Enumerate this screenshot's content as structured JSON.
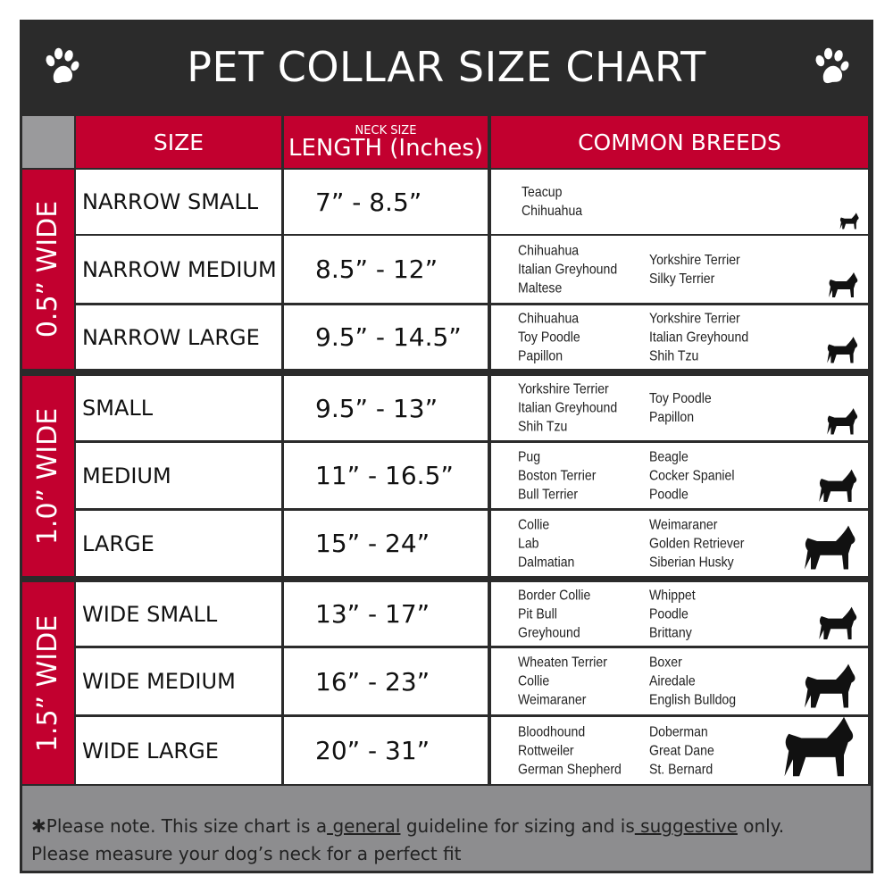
{
  "title": "PET COLLAR SIZE CHART",
  "header": {
    "size": "SIZE",
    "neck_size": "NECK SIZE",
    "length": "LENGTH (Inches)",
    "breeds": "COMMON BREEDS"
  },
  "colors": {
    "red": "#c2002f",
    "dark": "#2b2b2b",
    "gray": "#8d8d8f"
  },
  "groups": [
    {
      "label": "0.5” WIDE",
      "rows": [
        {
          "size": "NARROW SMALL",
          "length": "7” - 8.5”",
          "breeds_left": [
            "Teacup",
            "Chihuahua"
          ],
          "breeds_right": [],
          "icon": "yorkie-silhouette-icon"
        },
        {
          "size": "NARROW MEDIUM",
          "length": "8.5” - 12”",
          "breeds_left": [
            "Chihuahua",
            "Italian Greyhound",
            "Maltese"
          ],
          "breeds_right": [
            "Yorkshire Terrier",
            "Silky Terrier"
          ],
          "icon": "chihuahua-silhouette-icon"
        },
        {
          "size": "NARROW LARGE",
          "length": "9.5” - 14.5”",
          "breeds_left": [
            "Chihuahua",
            "Toy Poodle",
            "Papillon"
          ],
          "breeds_right": [
            "Yorkshire Terrier",
            "Italian Greyhound",
            "Shih Tzu"
          ],
          "icon": "pomeranian-silhouette-icon"
        }
      ]
    },
    {
      "label": "1.0” WIDE",
      "rows": [
        {
          "size": "SMALL",
          "length": "9.5” - 13”",
          "breeds_left": [
            "Yorkshire Terrier",
            "Italian Greyhound",
            "Shih Tzu"
          ],
          "breeds_right": [
            "Toy Poodle",
            "Papillon"
          ],
          "icon": "pomeranian-silhouette-icon"
        },
        {
          "size": "MEDIUM",
          "length": "11” - 16.5”",
          "breeds_left": [
            "Pug",
            "Boston Terrier",
            "Bull Terrier"
          ],
          "breeds_right": [
            "Beagle",
            "Cocker Spaniel",
            "Poodle"
          ],
          "icon": "dachshund-silhouette-icon"
        },
        {
          "size": "LARGE",
          "length": "15” - 24”",
          "breeds_left": [
            "Collie",
            "Lab",
            "Dalmatian"
          ],
          "breeds_right": [
            "Weimaraner",
            "Golden Retriever",
            "Siberian Husky"
          ],
          "icon": "shepherd-silhouette-icon"
        }
      ]
    },
    {
      "label": "1.5” WIDE",
      "rows": [
        {
          "size": "WIDE SMALL",
          "length": "13” - 17”",
          "breeds_left": [
            "Border Collie",
            "Pit Bull",
            "Greyhound"
          ],
          "breeds_right": [
            "Whippet",
            "Poodle",
            "Brittany"
          ],
          "icon": "bulldog-silhouette-icon"
        },
        {
          "size": "WIDE MEDIUM",
          "length": "16” - 23”",
          "breeds_left": [
            "Wheaten Terrier",
            "Collie",
            "Weimaraner"
          ],
          "breeds_right": [
            "Boxer",
            "Airedale",
            "English Bulldog"
          ],
          "icon": "pitbull-silhouette-icon"
        },
        {
          "size": "WIDE LARGE",
          "length": "20” - 31”",
          "breeds_left": [
            "Bloodhound",
            "Rottweiler",
            "German Shepherd"
          ],
          "breeds_right": [
            "Doberman",
            "Great Dane",
            "St. Bernard"
          ],
          "icon": "doberman-silhouette-icon"
        }
      ]
    }
  ],
  "footer": {
    "part1": "✱Please note. This size chart is a",
    "general": " general",
    "part2": " guideline for sizing and is",
    "suggestive": " suggestive",
    "part3": " only.",
    "line2": "Please measure your dog’s neck for a perfect fit"
  }
}
